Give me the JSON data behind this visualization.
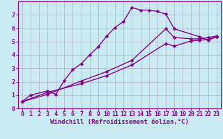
{
  "background_color": "#c8eaf0",
  "grid_color": "#b0b0cc",
  "line_color": "#880088",
  "marker": "D",
  "markersize": 2.5,
  "linewidth": 1.0,
  "xlabel": "Windchill (Refroidissement éolien,°C)",
  "xlabel_fontsize": 6.5,
  "tick_fontsize": 6.0,
  "xlim": [
    -0.5,
    23.5
  ],
  "ylim": [
    0,
    8
  ],
  "xticks": [
    0,
    1,
    2,
    3,
    4,
    5,
    6,
    7,
    8,
    9,
    10,
    11,
    12,
    13,
    14,
    15,
    16,
    17,
    18,
    19,
    20,
    21,
    22,
    23
  ],
  "yticks": [
    0,
    1,
    2,
    3,
    4,
    5,
    6,
    7
  ],
  "curve1_x": [
    0,
    1,
    3,
    4,
    5,
    6,
    7,
    8,
    9,
    10,
    11,
    12,
    13,
    14,
    15,
    16,
    17,
    18,
    21,
    22,
    23
  ],
  "curve1_y": [
    0.5,
    1.0,
    1.3,
    1.05,
    2.1,
    2.9,
    3.35,
    4.0,
    4.6,
    5.4,
    6.05,
    6.5,
    7.55,
    7.35,
    7.35,
    7.25,
    7.05,
    5.95,
    5.35,
    5.1,
    5.35
  ],
  "curve2_x": [
    0,
    3,
    7,
    10,
    13,
    17,
    18,
    20,
    21,
    22,
    23
  ],
  "curve2_y": [
    0.5,
    1.05,
    2.05,
    2.75,
    3.6,
    5.95,
    5.3,
    5.2,
    5.2,
    5.3,
    5.4
  ],
  "curve3_x": [
    0,
    3,
    7,
    10,
    13,
    17,
    18,
    20,
    21,
    22,
    23
  ],
  "curve3_y": [
    0.5,
    1.2,
    1.85,
    2.45,
    3.25,
    4.85,
    4.65,
    5.05,
    5.1,
    5.15,
    5.35
  ]
}
